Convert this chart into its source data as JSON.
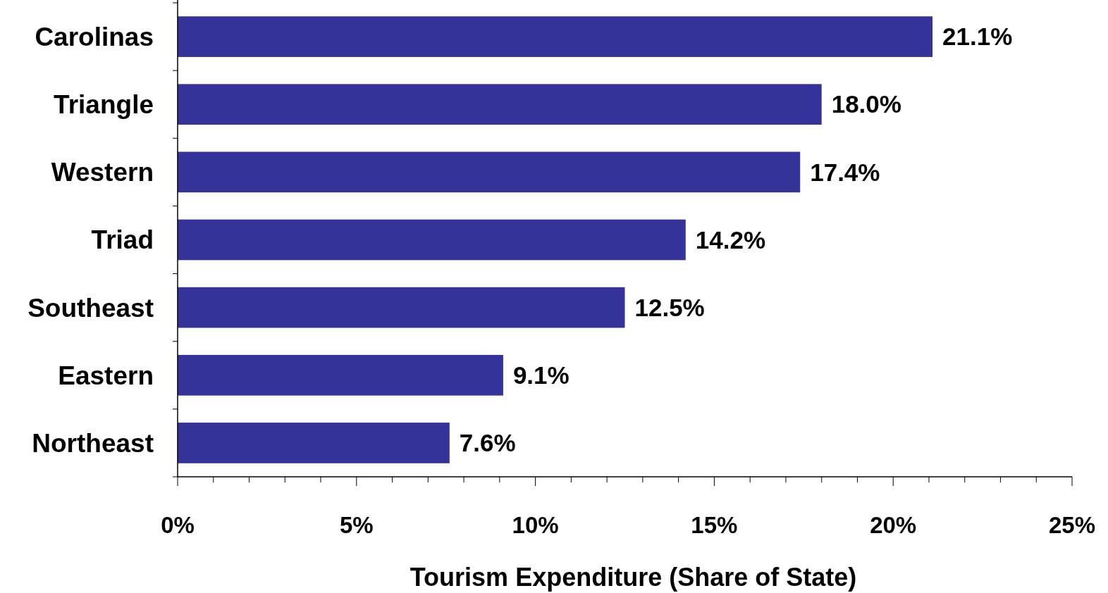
{
  "chart_data": {
    "type": "bar",
    "orientation": "horizontal",
    "xlabel": "Tourism Expenditure (Share of State)",
    "categories": [
      "Carolinas",
      "Triangle",
      "Western",
      "Triad",
      "Southeast",
      "Eastern",
      "Northeast"
    ],
    "values": [
      21.1,
      18.0,
      17.4,
      14.2,
      12.5,
      9.1,
      7.6
    ],
    "value_labels": [
      "21.1%",
      "18.0%",
      "17.4%",
      "14.2%",
      "12.5%",
      "9.1%",
      "7.6%"
    ],
    "color": "#333399",
    "xlim": [
      0,
      25
    ],
    "xticks": [
      {
        "value": 0,
        "label": "0%"
      },
      {
        "value": 1,
        "label": null
      },
      {
        "value": 2,
        "label": null
      },
      {
        "value": 3,
        "label": null
      },
      {
        "value": 4,
        "label": null
      },
      {
        "value": 5,
        "label": "5%"
      },
      {
        "value": 6,
        "label": null
      },
      {
        "value": 7,
        "label": null
      },
      {
        "value": 8,
        "label": null
      },
      {
        "value": 9,
        "label": null
      },
      {
        "value": 10,
        "label": "10%"
      },
      {
        "value": 11,
        "label": null
      },
      {
        "value": 12,
        "label": null
      },
      {
        "value": 13,
        "label": null
      },
      {
        "value": 14,
        "label": null
      },
      {
        "value": 15,
        "label": "15%"
      },
      {
        "value": 16,
        "label": null
      },
      {
        "value": 17,
        "label": null
      },
      {
        "value": 18,
        "label": null
      },
      {
        "value": 19,
        "label": null
      },
      {
        "value": 20,
        "label": "20%"
      },
      {
        "value": 21,
        "label": null
      },
      {
        "value": 22,
        "label": null
      },
      {
        "value": 23,
        "label": null
      },
      {
        "value": 24,
        "label": null
      },
      {
        "value": 25,
        "label": "25%"
      }
    ]
  }
}
